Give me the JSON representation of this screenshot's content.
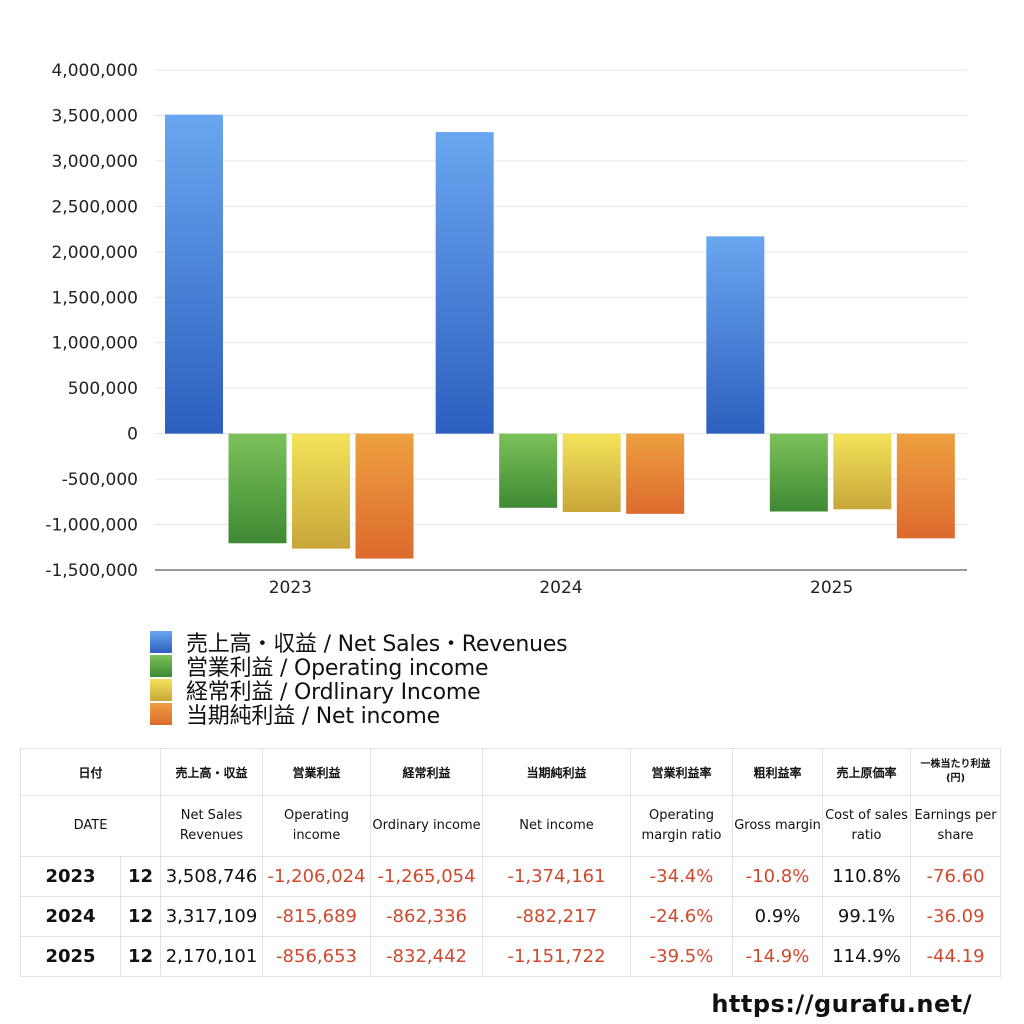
{
  "chart_data": {
    "type": "bar",
    "categories": [
      "2023",
      "2024",
      "2025"
    ],
    "ylim": [
      -1500000,
      4000000
    ],
    "yticks": [
      "4,000,000",
      "3,500,000",
      "3,000,000",
      "2,500,000",
      "2,000,000",
      "1,500,000",
      "1,000,000",
      "500,000",
      "0",
      "-500,000",
      "-1,000,000",
      "-1,500,000"
    ],
    "series": [
      {
        "name": "売上高・収益 / Net Sales・Revenues",
        "values": [
          3508746,
          3317109,
          2170101
        ],
        "color_top": "#6aa6f0",
        "color_bottom": "#2d5fbf"
      },
      {
        "name": "営業利益 / Operating income",
        "values": [
          -1206024,
          -815689,
          -856653
        ],
        "color_top": "#7cc25a",
        "color_bottom": "#3e8a33"
      },
      {
        "name": "経常利益 / Ordlinary Income",
        "values": [
          -1265054,
          -862336,
          -832442
        ],
        "color_top": "#f4e35a",
        "color_bottom": "#c8a63a"
      },
      {
        "name": "当期純利益 / Net income",
        "values": [
          -1374161,
          -882217,
          -1151722
        ],
        "color_top": "#eea040",
        "color_bottom": "#dc6a2e"
      }
    ]
  },
  "table": {
    "header_jp": [
      "日付",
      "売上高・収益",
      "営業利益",
      "経常利益",
      "当期純利益",
      "営業利益率",
      "粗利益率",
      "売上原価率",
      "一株当たり利益(円)"
    ],
    "header_en": [
      "DATE",
      "Net Sales Revenues",
      "Operating income",
      "Ordinary income",
      "Net income",
      "Operating margin ratio",
      "Gross margin",
      "Cost of sales ratio",
      "Earnings per share"
    ],
    "rows": [
      {
        "year": "2023",
        "month": "12",
        "sales": "3,508,746",
        "op": "-1,206,024",
        "ord": "-1,265,054",
        "net": "-1,374,161",
        "op_ratio": "-34.4%",
        "gross": "-10.8%",
        "cost": "110.8%",
        "eps": "-76.60"
      },
      {
        "year": "2024",
        "month": "12",
        "sales": "3,317,109",
        "op": "-815,689",
        "ord": "-862,336",
        "net": "-882,217",
        "op_ratio": "-24.6%",
        "gross": "0.9%",
        "cost": "99.1%",
        "eps": "-36.09"
      },
      {
        "year": "2025",
        "month": "12",
        "sales": "2,170,101",
        "op": "-856,653",
        "ord": "-832,442",
        "net": "-1,151,722",
        "op_ratio": "-39.5%",
        "gross": "-14.9%",
        "cost": "114.9%",
        "eps": "-44.19"
      }
    ]
  },
  "footer": "https://gurafu.net/"
}
